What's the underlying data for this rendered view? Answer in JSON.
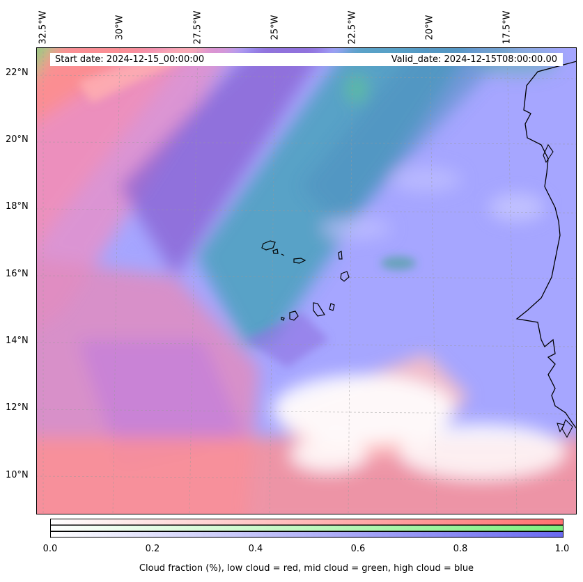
{
  "map": {
    "lon_labels": [
      "32.5°W",
      "30°W",
      "27.5°W",
      "25°W",
      "22.5°W",
      "20°W",
      "17.5°W"
    ],
    "lat_labels": [
      "22°N",
      "20°N",
      "18°N",
      "16°N",
      "14°N",
      "12°N",
      "10°N"
    ],
    "start_date": "Start date: 2024-12-15_00:00:00",
    "valid_date": "Valid_date: 2024-12-15T08:00:00.00",
    "colors": {
      "low": "#ff7070",
      "mid": "#8cf08c",
      "high": "#7070f0"
    }
  },
  "colorbar": {
    "ticks": [
      "0.0",
      "0.2",
      "0.4",
      "0.6",
      "0.8",
      "1.0"
    ],
    "label": "Cloud fraction (%), low cloud = red, mid cloud = green, high cloud = blue"
  }
}
